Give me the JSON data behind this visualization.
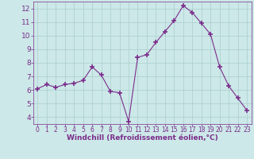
{
  "x": [
    0,
    1,
    2,
    3,
    4,
    5,
    6,
    7,
    8,
    9,
    10,
    11,
    12,
    13,
    14,
    15,
    16,
    17,
    18,
    19,
    20,
    21,
    22,
    23
  ],
  "y": [
    6.1,
    6.4,
    6.2,
    6.4,
    6.5,
    6.7,
    7.7,
    7.1,
    5.9,
    5.8,
    3.7,
    8.4,
    8.6,
    9.5,
    10.3,
    11.1,
    12.2,
    11.7,
    10.9,
    10.1,
    7.7,
    6.3,
    5.4,
    4.5
  ],
  "line_color": "#7b2d8b",
  "marker": "+",
  "markersize": 4,
  "markeredgewidth": 1.2,
  "linewidth": 0.8,
  "xlabel": "Windchill (Refroidissement éolien,°C)",
  "xlim": [
    -0.5,
    23.5
  ],
  "ylim": [
    3.5,
    12.5
  ],
  "yticks": [
    4,
    5,
    6,
    7,
    8,
    9,
    10,
    11,
    12
  ],
  "xticks": [
    0,
    1,
    2,
    3,
    4,
    5,
    6,
    7,
    8,
    9,
    10,
    11,
    12,
    13,
    14,
    15,
    16,
    17,
    18,
    19,
    20,
    21,
    22,
    23
  ],
  "bg_color": "#cce8e8",
  "grid_color": "#aacece",
  "line_and_label_color": "#7b2d8b",
  "xlabel_fontsize": 6.5,
  "tick_fontsize": 5.5,
  "ytick_fontsize": 6.5
}
